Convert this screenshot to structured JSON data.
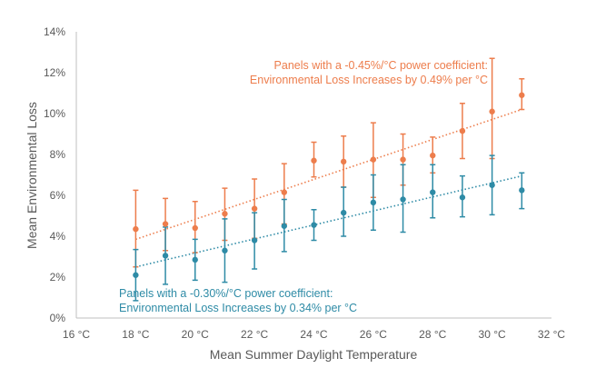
{
  "chart_data": {
    "type": "scatter",
    "title": "",
    "xlabel": "Mean Summer Daylight Temperature",
    "ylabel": "Mean Environmental Loss",
    "xlim": [
      16,
      32
    ],
    "ylim": [
      0,
      14
    ],
    "x_ticks": [
      16,
      18,
      20,
      22,
      24,
      26,
      28,
      30,
      32
    ],
    "x_tick_labels": [
      "16 °C",
      "18 °C",
      "20 °C",
      "22 °C",
      "24 °C",
      "26 °C",
      "28 °C",
      "30 °C",
      "32 °C"
    ],
    "y_ticks": [
      0,
      2,
      4,
      6,
      8,
      10,
      12,
      14
    ],
    "y_tick_labels": [
      "0%",
      "2%",
      "4%",
      "6%",
      "8%",
      "10%",
      "12%",
      "14%"
    ],
    "grid": false,
    "legend": "none",
    "series": [
      {
        "color": "#ed7d4c",
        "x": [
          18,
          19,
          20,
          21,
          22,
          23,
          24,
          25,
          26,
          27,
          28,
          29,
          30,
          31
        ],
        "y": [
          4.35,
          4.6,
          4.4,
          5.1,
          5.35,
          6.15,
          7.7,
          7.65,
          7.75,
          7.75,
          7.95,
          9.15,
          10.1,
          10.9
        ],
        "y_low": [
          2.5,
          3.3,
          3.2,
          3.8,
          3.9,
          4.6,
          6.9,
          6.4,
          5.9,
          6.5,
          7.1,
          7.8,
          7.8,
          10.2
        ],
        "y_high": [
          6.25,
          5.85,
          5.7,
          6.35,
          6.8,
          7.55,
          8.6,
          8.9,
          9.55,
          9.0,
          8.85,
          10.5,
          12.7,
          11.7
        ],
        "trend": {
          "x": [
            18,
            31
          ],
          "y": [
            3.85,
            10.2
          ]
        }
      },
      {
        "color": "#2e8ba6",
        "x": [
          18,
          19,
          20,
          21,
          22,
          23,
          24,
          25,
          26,
          27,
          28,
          29,
          30,
          31
        ],
        "y": [
          2.1,
          3.05,
          2.85,
          3.3,
          3.8,
          4.5,
          4.55,
          5.15,
          5.65,
          5.8,
          6.15,
          5.9,
          6.5,
          6.25
        ],
        "y_low": [
          0.85,
          1.65,
          1.85,
          1.75,
          2.4,
          3.25,
          3.8,
          4.0,
          4.3,
          4.2,
          4.9,
          4.95,
          5.05,
          5.35
        ],
        "y_high": [
          3.35,
          4.45,
          3.85,
          4.85,
          5.15,
          5.8,
          5.3,
          6.4,
          7.0,
          7.5,
          7.5,
          6.95,
          7.95,
          7.1
        ],
        "trend": {
          "x": [
            18,
            31
          ],
          "y": [
            2.5,
            6.95
          ]
        }
      }
    ],
    "annotations": [
      {
        "lines": [
          "Panels with a -0.45%/°C power coefficient:",
          "Environmental Loss Increases by 0.49% per °C"
        ],
        "color": "#ed7d4c"
      },
      {
        "lines": [
          "Panels with a -0.30%/°C power coefficient:",
          "Environmental Loss Increases by 0.34% per °C"
        ],
        "color": "#2e8ba6"
      }
    ],
    "axis_color": "#bfbfbf",
    "text_color": "#595959"
  }
}
